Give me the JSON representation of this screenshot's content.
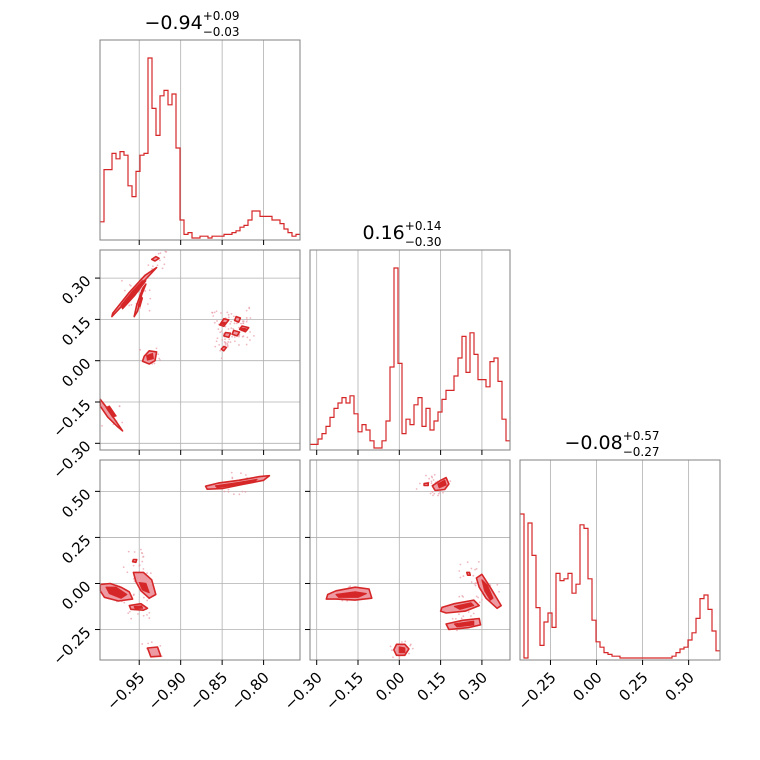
{
  "chart_data": {
    "type": "corner",
    "parameters": [
      {
        "range": [
          -0.9973,
          -0.7561
        ],
        "ticks": [
          -0.95,
          -0.9,
          -0.85,
          -0.8
        ],
        "tick_labels": [
          "−0.95",
          "−0.90",
          "−0.85",
          "−0.80"
        ]
      },
      {
        "range": [
          -0.3243,
          0.402
        ],
        "ticks": [
          -0.3,
          -0.15,
          0.0,
          0.15,
          0.3
        ],
        "tick_labels": [
          "−0.30",
          "−0.15",
          "0.00",
          "0.15",
          "0.30"
        ]
      },
      {
        "range": [
          -0.4154,
          0.6703
        ],
        "ticks": [
          -0.25,
          0.0,
          0.25,
          0.5
        ],
        "tick_labels": [
          "−0.25",
          "0.00",
          "0.25",
          "0.50"
        ]
      }
    ],
    "titles": [
      {
        "main": "−0.94",
        "sup": "+0.09",
        "sub": "−0.03"
      },
      {
        "main": "0.16",
        "sup": "+0.14",
        "sub": "−0.30"
      },
      {
        "main": "−0.08",
        "sup": "+0.57",
        "sub": "−0.27"
      }
    ],
    "hist": [
      [
        0.09,
        0.38,
        0.38,
        0.47,
        0.44,
        0.48,
        0.46,
        0.29,
        0.23,
        0.37,
        0.46,
        0.47,
        1.0,
        0.72,
        0.57,
        0.79,
        0.82,
        0.74,
        0.8,
        0.5,
        0.1,
        0.02,
        0.03,
        0.0,
        0.0,
        0.01,
        0.01,
        0.0,
        0.01,
        0.01,
        0.01,
        0.02,
        0.02,
        0.03,
        0.04,
        0.06,
        0.07,
        0.1,
        0.15,
        0.15,
        0.12,
        0.12,
        0.12,
        0.1,
        0.1,
        0.08,
        0.05,
        0.03,
        0.01,
        0.02
      ],
      [
        0.02,
        0.02,
        0.05,
        0.08,
        0.12,
        0.17,
        0.22,
        0.25,
        0.28,
        0.25,
        0.29,
        0.19,
        0.09,
        0.13,
        0.1,
        0.04,
        0.0,
        0.0,
        0.04,
        0.15,
        0.45,
        1.0,
        0.47,
        0.08,
        0.16,
        0.13,
        0.24,
        0.28,
        0.12,
        0.22,
        0.1,
        0.15,
        0.2,
        0.27,
        0.32,
        0.32,
        0.4,
        0.5,
        0.62,
        0.42,
        0.64,
        0.52,
        0.38,
        0.38,
        0.34,
        0.48,
        0.5,
        0.37,
        0.16,
        0.04
      ],
      [
        0.8,
        0.0,
        0.75,
        0.57,
        0.28,
        0.07,
        0.2,
        0.25,
        0.17,
        0.47,
        0.43,
        0.44,
        0.47,
        0.36,
        0.41,
        0.74,
        0.72,
        0.44,
        0.21,
        0.09,
        0.06,
        0.03,
        0.02,
        0.01,
        0.01,
        0.0,
        0.0,
        0.0,
        0.0,
        0.0,
        0.0,
        0.0,
        0.0,
        0.0,
        0.0,
        0.0,
        0.0,
        0.0,
        0.01,
        0.03,
        0.05,
        0.06,
        0.1,
        0.14,
        0.22,
        0.33,
        0.35,
        0.27,
        0.15,
        0.04
      ]
    ],
    "pairs": [
      {
        "x": 0,
        "y": 1,
        "outer": [
          [
            [
              -0.982,
              0.172
            ],
            [
              -0.962,
              0.248
            ],
            [
              -0.943,
              0.31
            ],
            [
              -0.929,
              0.338
            ],
            [
              -0.934,
              0.322
            ],
            [
              -0.95,
              0.27
            ],
            [
              -0.968,
              0.208
            ],
            [
              -0.983,
              0.16
            ]
          ],
          [
            [
              -0.956,
              0.16
            ],
            [
              -0.953,
              0.202
            ],
            [
              -0.946,
              0.262
            ],
            [
              -0.942,
              0.278
            ],
            [
              -0.947,
              0.24
            ],
            [
              -0.952,
              0.18
            ]
          ],
          [
            [
              -0.944,
              0.016
            ],
            [
              -0.938,
              0.036
            ],
            [
              -0.929,
              0.032
            ],
            [
              -0.931,
              0.0
            ],
            [
              -0.938,
              -0.012
            ],
            [
              -0.946,
              -0.002
            ]
          ],
          [
            [
              -0.997,
              -0.14
            ],
            [
              -0.988,
              -0.175
            ],
            [
              -0.978,
              -0.22
            ],
            [
              -0.97,
              -0.255
            ],
            [
              -0.976,
              -0.24
            ],
            [
              -0.988,
              -0.205
            ],
            [
              -0.997,
              -0.165
            ]
          ],
          [
            [
              -0.848,
              0.152
            ],
            [
              -0.842,
              0.148
            ],
            [
              -0.848,
              0.125
            ],
            [
              -0.853,
              0.13
            ]
          ],
          [
            [
              -0.833,
              0.16
            ],
            [
              -0.828,
              0.155
            ],
            [
              -0.83,
              0.14
            ],
            [
              -0.835,
              0.146
            ]
          ],
          [
            [
              -0.826,
              0.126
            ],
            [
              -0.818,
              0.12
            ],
            [
              -0.822,
              0.105
            ],
            [
              -0.829,
              0.114
            ]
          ],
          [
            [
              -0.836,
              0.11
            ],
            [
              -0.829,
              0.104
            ],
            [
              -0.832,
              0.09
            ],
            [
              -0.838,
              0.096
            ]
          ],
          [
            [
              -0.846,
              0.102
            ],
            [
              -0.84,
              0.1
            ],
            [
              -0.842,
              0.085
            ],
            [
              -0.848,
              0.09
            ]
          ],
          [
            [
              -0.848,
              0.052
            ],
            [
              -0.845,
              0.048
            ],
            [
              -0.848,
              0.036
            ],
            [
              -0.851,
              0.042
            ]
          ],
          [
            [
              -0.935,
              0.368
            ],
            [
              -0.93,
              0.378
            ],
            [
              -0.926,
              0.372
            ],
            [
              -0.931,
              0.362
            ]
          ]
        ],
        "inner": [
          [
            [
              -0.972,
              0.2
            ],
            [
              -0.958,
              0.252
            ],
            [
              -0.946,
              0.29
            ],
            [
              -0.942,
              0.29
            ],
            [
              -0.955,
              0.238
            ],
            [
              -0.97,
              0.188
            ]
          ],
          [
            [
              -0.951,
              0.2
            ],
            [
              -0.948,
              0.23
            ],
            [
              -0.946,
              0.228
            ],
            [
              -0.949,
              0.196
            ]
          ],
          [
            [
              -0.941,
              0.018
            ],
            [
              -0.934,
              0.026
            ],
            [
              -0.933,
              0.008
            ],
            [
              -0.94,
              0.002
            ]
          ],
          [
            [
              -0.99,
              -0.17
            ],
            [
              -0.982,
              -0.205
            ],
            [
              -0.978,
              -0.2
            ],
            [
              -0.986,
              -0.165
            ]
          ],
          [
            [
              -0.85,
              0.14
            ],
            [
              -0.846,
              0.138
            ],
            [
              -0.848,
              0.131
            ],
            [
              -0.852,
              0.134
            ]
          ],
          [
            [
              -0.826,
              0.118
            ],
            [
              -0.821,
              0.116
            ],
            [
              -0.823,
              0.109
            ],
            [
              -0.828,
              0.112
            ]
          ]
        ]
      },
      {
        "x": 0,
        "y": 2,
        "outer": [
          [
            [
              -0.87,
              0.528
            ],
            [
              -0.855,
              0.545
            ],
            [
              -0.83,
              0.56
            ],
            [
              -0.805,
              0.58
            ],
            [
              -0.793,
              0.585
            ],
            [
              -0.8,
              0.56
            ],
            [
              -0.825,
              0.538
            ],
            [
              -0.85,
              0.515
            ],
            [
              -0.868,
              0.512
            ]
          ],
          [
            [
              -0.997,
              -0.005
            ],
            [
              -0.985,
              0.0
            ],
            [
              -0.972,
              -0.02
            ],
            [
              -0.962,
              -0.045
            ],
            [
              -0.958,
              -0.085
            ],
            [
              -0.975,
              -0.095
            ],
            [
              -0.992,
              -0.075
            ],
            [
              -0.997,
              -0.04
            ]
          ],
          [
            [
              -0.962,
              -0.12
            ],
            [
              -0.948,
              -0.11
            ],
            [
              -0.94,
              -0.135
            ],
            [
              -0.945,
              -0.145
            ],
            [
              -0.96,
              -0.14
            ]
          ],
          [
            [
              -0.957,
              0.06
            ],
            [
              -0.945,
              0.06
            ],
            [
              -0.935,
              0.02
            ],
            [
              -0.93,
              -0.06
            ],
            [
              -0.938,
              -0.08
            ],
            [
              -0.948,
              -0.04
            ],
            [
              -0.954,
              0.01
            ]
          ],
          [
            [
              -0.94,
              -0.35
            ],
            [
              -0.928,
              -0.345
            ],
            [
              -0.924,
              -0.395
            ],
            [
              -0.936,
              -0.398
            ]
          ],
          [
            [
              -0.957,
              0.13
            ],
            [
              -0.953,
              0.13
            ],
            [
              -0.954,
              0.115
            ],
            [
              -0.958,
              0.118
            ]
          ]
        ],
        "inner": [
          [
            [
              -0.858,
              0.53
            ],
            [
              -0.83,
              0.548
            ],
            [
              -0.808,
              0.565
            ],
            [
              -0.812,
              0.55
            ],
            [
              -0.838,
              0.532
            ],
            [
              -0.856,
              0.52
            ]
          ],
          [
            [
              -0.99,
              -0.02
            ],
            [
              -0.978,
              -0.02
            ],
            [
              -0.965,
              -0.06
            ],
            [
              -0.972,
              -0.08
            ],
            [
              -0.986,
              -0.055
            ]
          ],
          [
            [
              -0.95,
              0.005
            ],
            [
              -0.942,
              0.0
            ],
            [
              -0.938,
              -0.05
            ],
            [
              -0.946,
              -0.035
            ]
          ],
          [
            [
              -0.956,
              -0.125
            ],
            [
              -0.947,
              -0.122
            ],
            [
              -0.946,
              -0.134
            ],
            [
              -0.955,
              -0.136
            ]
          ]
        ]
      },
      {
        "x": 1,
        "y": 2,
        "outer": [
          [
            [
              -0.26,
              -0.06
            ],
            [
              -0.23,
              -0.04
            ],
            [
              -0.16,
              -0.02
            ],
            [
              -0.11,
              -0.03
            ],
            [
              -0.1,
              -0.08
            ],
            [
              -0.16,
              -0.09
            ],
            [
              -0.23,
              -0.085
            ],
            [
              -0.265,
              -0.085
            ]
          ],
          [
            [
              0.12,
              0.53
            ],
            [
              0.15,
              0.56
            ],
            [
              0.17,
              0.575
            ],
            [
              0.18,
              0.54
            ],
            [
              0.165,
              0.51
            ],
            [
              0.13,
              0.505
            ]
          ],
          [
            [
              0.09,
              0.542
            ],
            [
              0.105,
              0.546
            ],
            [
              0.105,
              0.532
            ],
            [
              0.09,
              0.532
            ]
          ],
          [
            [
              0.155,
              -0.13
            ],
            [
              0.2,
              -0.11
            ],
            [
              0.27,
              -0.09
            ],
            [
              0.29,
              -0.12
            ],
            [
              0.24,
              -0.15
            ],
            [
              0.17,
              -0.16
            ],
            [
              0.15,
              -0.15
            ]
          ],
          [
            [
              0.17,
              -0.22
            ],
            [
              0.23,
              -0.2
            ],
            [
              0.29,
              -0.19
            ],
            [
              0.295,
              -0.225
            ],
            [
              0.25,
              -0.24
            ],
            [
              0.18,
              -0.25
            ]
          ],
          [
            [
              0.28,
              0.03
            ],
            [
              0.3,
              0.05
            ],
            [
              0.33,
              -0.02
            ],
            [
              0.37,
              -0.12
            ],
            [
              0.355,
              -0.135
            ],
            [
              0.315,
              -0.08
            ],
            [
              0.29,
              -0.02
            ]
          ],
          [
            [
              0.245,
              0.06
            ],
            [
              0.255,
              0.06
            ],
            [
              0.258,
              0.045
            ],
            [
              0.248,
              0.045
            ]
          ],
          [
            [
              -0.01,
              -0.33
            ],
            [
              0.02,
              -0.33
            ],
            [
              0.035,
              -0.355
            ],
            [
              0.02,
              -0.39
            ],
            [
              -0.01,
              -0.39
            ],
            [
              -0.02,
              -0.36
            ]
          ]
        ],
        "inner": [
          [
            [
              -0.23,
              -0.06
            ],
            [
              -0.16,
              -0.045
            ],
            [
              -0.12,
              -0.055
            ],
            [
              -0.15,
              -0.075
            ],
            [
              -0.22,
              -0.075
            ]
          ],
          [
            [
              0.14,
              0.54
            ],
            [
              0.165,
              0.56
            ],
            [
              0.17,
              0.535
            ],
            [
              0.145,
              0.52
            ]
          ],
          [
            [
              0.2,
              -0.125
            ],
            [
              0.26,
              -0.105
            ],
            [
              0.27,
              -0.12
            ],
            [
              0.22,
              -0.14
            ]
          ],
          [
            [
              0.2,
              -0.22
            ],
            [
              0.27,
              -0.205
            ],
            [
              0.27,
              -0.225
            ],
            [
              0.21,
              -0.235
            ]
          ],
          [
            [
              0.3,
              0.02
            ],
            [
              0.32,
              -0.01
            ],
            [
              0.34,
              -0.08
            ],
            [
              0.33,
              -0.09
            ],
            [
              0.31,
              -0.04
            ]
          ],
          [
            [
              0.0,
              -0.345
            ],
            [
              0.02,
              -0.35
            ],
            [
              0.02,
              -0.375
            ],
            [
              0.0,
              -0.375
            ]
          ]
        ]
      }
    ],
    "colors": {
      "hist": "#d62728",
      "outer_fill": "#ee9aa2",
      "inner_fill": "#d62728",
      "line": "#d62728",
      "grid": "#b0b0b0",
      "scatter": "#e89aa5"
    }
  }
}
